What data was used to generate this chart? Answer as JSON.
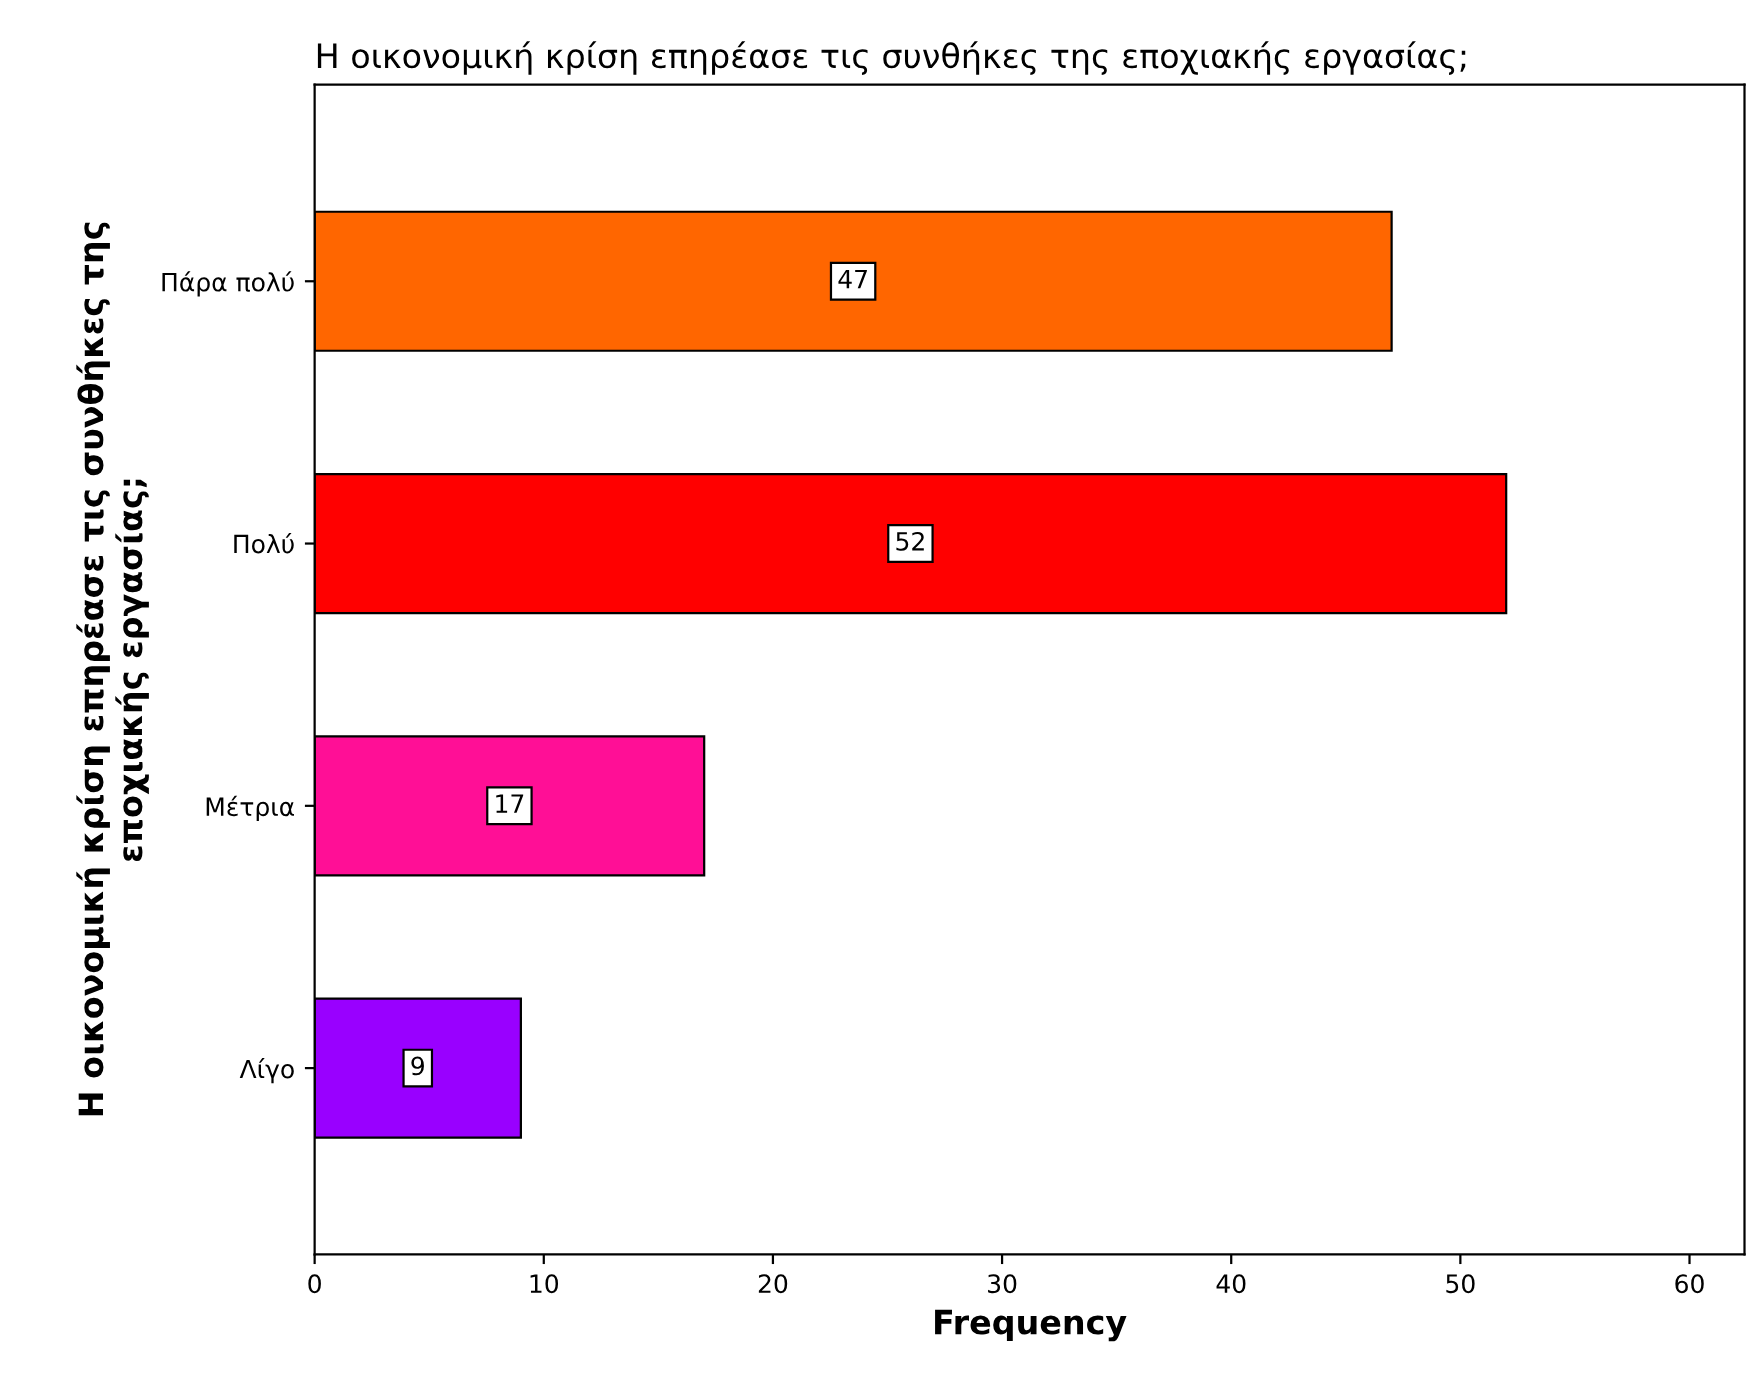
{
  "chart_data": {
    "type": "bar",
    "orientation": "horizontal",
    "title": "Η οικονομική κρίση επηρέασε τις συνθήκες της εποχιακής εργασίας;",
    "ylabel": "Η οικονομική κρίση επηρέασε τις συνθήκες της\nεποχιακής εργασίας;",
    "xlabel": "Frequency",
    "categories": [
      "Πάρα πολύ",
      "Πολύ",
      "Μέτρια",
      "Λίγο"
    ],
    "values": [
      47,
      52,
      17,
      9
    ],
    "colors": [
      "#ff6600",
      "#ff0000",
      "#ff0f96",
      "#9900ff"
    ],
    "xlim": [
      0,
      62.4
    ],
    "xticks": [
      0,
      10,
      20,
      30,
      40,
      50,
      60
    ],
    "data_labels": true,
    "grid": false,
    "legend": false
  }
}
